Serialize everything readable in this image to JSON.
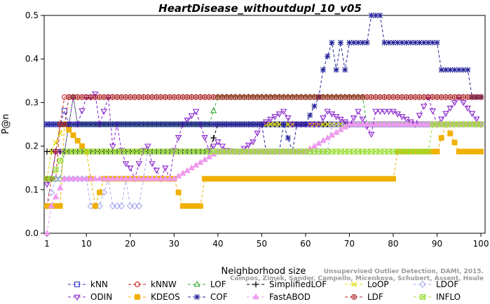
{
  "chart_data": {
    "type": "line",
    "title": "HeartDisease_withoutdupl_10_v05",
    "xlabel": "Neighborhood size",
    "ylabel": "P@n",
    "xlim": [
      1,
      100
    ],
    "ylim": [
      0,
      0.5
    ],
    "x_ticks": [
      1,
      10,
      20,
      30,
      40,
      50,
      60,
      70,
      80,
      90,
      100
    ],
    "y_ticks": [
      "0.0",
      "0.1",
      "0.2",
      "0.3",
      "0.4",
      "0.5"
    ],
    "grid": false,
    "legend_position": "bottom",
    "credit_lines": [
      "Unsupervised Outlier Detection, DAMI, 2015.",
      "Campos, Zimek, Sander, Campello, Micenkova, Schubert, Assent, Houle"
    ],
    "series": [
      {
        "name": "kNN",
        "color": "#3333cc",
        "marker": "square",
        "points": [
          [
            1,
            0.25
          ],
          [
            2,
            0.25
          ],
          [
            3,
            0.25
          ],
          [
            4,
            0.25
          ],
          [
            5,
            0.281
          ],
          [
            6,
            0.25
          ],
          [
            7,
            0.25
          ],
          [
            8,
            0.25
          ],
          [
            9,
            0.25
          ],
          [
            10,
            0.25
          ],
          [
            15,
            0.25
          ],
          [
            20,
            0.25
          ],
          [
            30,
            0.25
          ],
          [
            40,
            0.25
          ],
          [
            50,
            0.25
          ],
          [
            60,
            0.25
          ],
          [
            70,
            0.25
          ],
          [
            80,
            0.25
          ],
          [
            90,
            0.25
          ],
          [
            100,
            0.25
          ]
        ]
      },
      {
        "name": "kNNW",
        "color": "#cc2222",
        "marker": "circle",
        "points": [
          [
            1,
            0.0625
          ],
          [
            2,
            0.125
          ],
          [
            3,
            0.125
          ],
          [
            4,
            0.25
          ],
          [
            5,
            0.3125
          ],
          [
            6,
            0.3125
          ],
          [
            8,
            0.3125
          ],
          [
            10,
            0.3125
          ],
          [
            20,
            0.3125
          ],
          [
            30,
            0.3125
          ],
          [
            40,
            0.3125
          ],
          [
            50,
            0.3125
          ],
          [
            60,
            0.3125
          ],
          [
            70,
            0.3125
          ],
          [
            80,
            0.3125
          ],
          [
            90,
            0.3125
          ],
          [
            100,
            0.3125
          ]
        ]
      },
      {
        "name": "LOF",
        "color": "#33aa33",
        "marker": "triangle-up",
        "points": [
          [
            1,
            0.125
          ],
          [
            2,
            0.125
          ],
          [
            3,
            0.125
          ],
          [
            4,
            0.125
          ],
          [
            5,
            0.1875
          ],
          [
            6,
            0.25
          ],
          [
            7,
            0.3125
          ],
          [
            8,
            0.25
          ],
          [
            10,
            0.25
          ],
          [
            20,
            0.25
          ],
          [
            30,
            0.25
          ],
          [
            38,
            0.25
          ],
          [
            40,
            0.3125
          ],
          [
            50,
            0.3125
          ],
          [
            60,
            0.3125
          ],
          [
            70,
            0.3125
          ],
          [
            73,
            0.3125
          ],
          [
            74,
            0.25
          ],
          [
            80,
            0.25
          ],
          [
            90,
            0.25
          ],
          [
            100,
            0.25
          ]
        ]
      },
      {
        "name": "SimplifiedLOF",
        "color": "#000000",
        "marker": "plus",
        "points": [
          [
            1,
            0.1875
          ],
          [
            2,
            0.1875
          ],
          [
            5,
            0.1875
          ],
          [
            10,
            0.1875
          ],
          [
            20,
            0.1875
          ],
          [
            30,
            0.1875
          ],
          [
            35,
            0.1875
          ],
          [
            38,
            0.1875
          ],
          [
            40,
            0.25
          ],
          [
            50,
            0.25
          ],
          [
            60,
            0.25
          ],
          [
            70,
            0.25
          ],
          [
            80,
            0.25
          ],
          [
            90,
            0.25
          ],
          [
            100,
            0.25
          ]
        ]
      },
      {
        "name": "LoOP",
        "color": "#dddd00",
        "marker": "cross",
        "points": [
          [
            1,
            0.125
          ],
          [
            2,
            0.1875
          ],
          [
            5,
            0.25
          ],
          [
            10,
            0.25
          ],
          [
            20,
            0.25
          ],
          [
            30,
            0.25
          ],
          [
            40,
            0.25
          ],
          [
            50,
            0.25
          ],
          [
            60,
            0.25
          ],
          [
            70,
            0.25
          ],
          [
            80,
            0.25
          ],
          [
            90,
            0.25
          ],
          [
            100,
            0.25
          ]
        ]
      },
      {
        "name": "LDOF",
        "color": "#aaaaee",
        "marker": "diamond",
        "points": [
          [
            1,
            0.0625
          ],
          [
            3,
            0.125
          ],
          [
            5,
            0.125
          ],
          [
            8,
            0.125
          ],
          [
            9,
            0.125
          ],
          [
            10,
            0.125
          ],
          [
            11,
            0.0625
          ],
          [
            13,
            0.0625
          ],
          [
            15,
            0.125
          ],
          [
            16,
            0.0625
          ],
          [
            18,
            0.0625
          ],
          [
            19,
            0.125
          ],
          [
            20,
            0.0625
          ],
          [
            22,
            0.0625
          ],
          [
            23,
            0.125
          ],
          [
            24,
            0.1875
          ],
          [
            30,
            0.1875
          ],
          [
            40,
            0.1875
          ],
          [
            50,
            0.1875
          ],
          [
            60,
            0.1875
          ],
          [
            65,
            0.1875
          ],
          [
            66,
            0.25
          ],
          [
            70,
            0.25
          ],
          [
            80,
            0.25
          ],
          [
            90,
            0.25
          ],
          [
            100,
            0.25
          ]
        ]
      },
      {
        "name": "ODIN",
        "color": "#8822cc",
        "marker": "triangle-down",
        "points": [
          [
            1,
            0.1125
          ],
          [
            2,
            0.125
          ],
          [
            3,
            0.1875
          ],
          [
            5,
            0.1875
          ],
          [
            6,
            0.25
          ],
          [
            7,
            0.3125
          ],
          [
            8,
            0.25
          ],
          [
            10,
            0.3125
          ],
          [
            11,
            0.3125
          ],
          [
            12,
            0.32
          ],
          [
            13,
            0.25
          ],
          [
            14,
            0.28
          ],
          [
            15,
            0.3125
          ],
          [
            16,
            0.2
          ],
          [
            17,
            0.25
          ],
          [
            18,
            0.19
          ],
          [
            19,
            0.16
          ],
          [
            20,
            0.15
          ],
          [
            21,
            0.125
          ],
          [
            22,
            0.16
          ],
          [
            23,
            0.19
          ],
          [
            24,
            0.2
          ],
          [
            25,
            0.16
          ],
          [
            26,
            0.145
          ],
          [
            27,
            0.125
          ],
          [
            28,
            0.15
          ],
          [
            29,
            0.125
          ],
          [
            30,
            0.19
          ],
          [
            32,
            0.25
          ],
          [
            35,
            0.28
          ],
          [
            38,
            0.19
          ],
          [
            40,
            0.21
          ],
          [
            42,
            0.19
          ],
          [
            45,
            0.1875
          ],
          [
            48,
            0.21
          ],
          [
            50,
            0.25
          ],
          [
            55,
            0.28
          ],
          [
            57,
            0.25
          ],
          [
            60,
            0.25
          ],
          [
            63,
            0.25
          ],
          [
            65,
            0.28
          ],
          [
            70,
            0.25
          ],
          [
            72,
            0.28
          ],
          [
            75,
            0.2275
          ],
          [
            76,
            0.28
          ],
          [
            80,
            0.28
          ],
          [
            85,
            0.25
          ],
          [
            88,
            0.3125
          ],
          [
            90,
            0.25
          ],
          [
            95,
            0.3125
          ],
          [
            100,
            0.25
          ]
        ]
      },
      {
        "name": "KDEOS",
        "color": "#f0b000",
        "marker": "square-filled",
        "points": [
          [
            1,
            0.0625
          ],
          [
            2,
            0.0625
          ],
          [
            3,
            0.0625
          ],
          [
            4,
            0.0625
          ],
          [
            5,
            0.25
          ],
          [
            10,
            0.1875
          ],
          [
            12,
            0.0625
          ],
          [
            14,
            0.125
          ],
          [
            15,
            0.125
          ],
          [
            18,
            0.125
          ],
          [
            20,
            0.125
          ],
          [
            25,
            0.125
          ],
          [
            30,
            0.125
          ],
          [
            32,
            0.0625
          ],
          [
            36,
            0.0625
          ],
          [
            37,
            0.125
          ],
          [
            40,
            0.125
          ],
          [
            50,
            0.125
          ],
          [
            60,
            0.125
          ],
          [
            70,
            0.125
          ],
          [
            80,
            0.125
          ],
          [
            81,
            0.1875
          ],
          [
            85,
            0.1875
          ],
          [
            90,
            0.1875
          ],
          [
            92,
            0.25
          ],
          [
            95,
            0.1875
          ],
          [
            100,
            0.1875
          ]
        ]
      },
      {
        "name": "COF",
        "color": "#222299",
        "marker": "asterisk",
        "points": [
          [
            1,
            0.25
          ],
          [
            2,
            0.25
          ],
          [
            5,
            0.25
          ],
          [
            10,
            0.25
          ],
          [
            20,
            0.25
          ],
          [
            30,
            0.25
          ],
          [
            40,
            0.25
          ],
          [
            50,
            0.25
          ],
          [
            51,
            0.1875
          ],
          [
            53,
            0.1875
          ],
          [
            54,
            0.1875
          ],
          [
            55,
            0.25
          ],
          [
            57,
            0.1875
          ],
          [
            58,
            0.25
          ],
          [
            60,
            0.25
          ],
          [
            63,
            0.3125
          ],
          [
            64,
            0.375
          ],
          [
            66,
            0.4375
          ],
          [
            67,
            0.375
          ],
          [
            68,
            0.4375
          ],
          [
            69,
            0.375
          ],
          [
            70,
            0.4375
          ],
          [
            73,
            0.4375
          ],
          [
            74,
            0.4375
          ],
          [
            75,
            0.5
          ],
          [
            77,
            0.5
          ],
          [
            78,
            0.4375
          ],
          [
            80,
            0.4375
          ],
          [
            90,
            0.4375
          ],
          [
            91,
            0.375
          ],
          [
            95,
            0.375
          ],
          [
            97,
            0.375
          ],
          [
            98,
            0.3125
          ],
          [
            100,
            0.3125
          ]
        ]
      },
      {
        "name": "FastABOD",
        "color": "#ee99ee",
        "marker": "triangle-up-filled",
        "points": [
          [
            1,
            0.0
          ],
          [
            2,
            0.0625
          ],
          [
            5,
            0.125
          ],
          [
            10,
            0.125
          ],
          [
            20,
            0.125
          ],
          [
            30,
            0.125
          ],
          [
            40,
            0.1875
          ],
          [
            50,
            0.1875
          ],
          [
            60,
            0.1875
          ],
          [
            70,
            0.25
          ],
          [
            80,
            0.25
          ],
          [
            90,
            0.25
          ],
          [
            100,
            0.25
          ]
        ]
      },
      {
        "name": "LDF",
        "color": "#aa2222",
        "marker": "circle-plus",
        "points": [
          [
            1,
            0.125
          ],
          [
            2,
            0.125
          ],
          [
            4,
            0.25
          ],
          [
            5,
            0.25
          ],
          [
            6,
            0.3125
          ],
          [
            10,
            0.3125
          ],
          [
            20,
            0.3125
          ],
          [
            30,
            0.3125
          ],
          [
            40,
            0.3125
          ],
          [
            50,
            0.3125
          ],
          [
            60,
            0.3125
          ],
          [
            70,
            0.3125
          ],
          [
            80,
            0.3125
          ],
          [
            90,
            0.3125
          ],
          [
            100,
            0.3125
          ]
        ]
      },
      {
        "name": "INFLO",
        "color": "#99dd33",
        "marker": "square-cross",
        "points": [
          [
            1,
            0.125
          ],
          [
            2,
            0.125
          ],
          [
            5,
            0.1875
          ],
          [
            10,
            0.1875
          ],
          [
            20,
            0.1875
          ],
          [
            30,
            0.1875
          ],
          [
            40,
            0.1875
          ],
          [
            50,
            0.1875
          ],
          [
            60,
            0.1875
          ],
          [
            70,
            0.1875
          ],
          [
            80,
            0.1875
          ],
          [
            88,
            0.1875
          ],
          [
            89,
            0.25
          ],
          [
            100,
            0.25
          ]
        ]
      }
    ]
  }
}
